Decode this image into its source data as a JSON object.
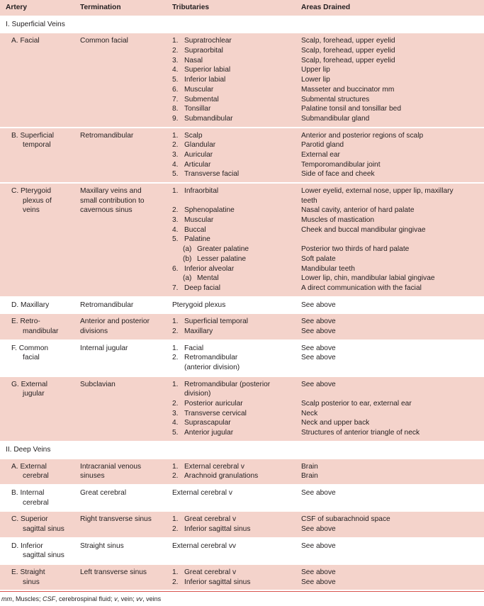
{
  "headers": [
    "Artery",
    "Termination",
    "Tributaries",
    "Areas Drained"
  ],
  "colors": {
    "row_fill": "#f4d3cb",
    "rule": "#d9534f"
  },
  "sections": [
    {
      "title": "I. Superficial Veins",
      "rows": [
        {
          "pink": true,
          "artery": [
            "A. Facial"
          ],
          "termination": [
            "Common facial"
          ],
          "tributaries": [
            {
              "num": "1.",
              "text": "Supratrochlear"
            },
            {
              "num": "2.",
              "text": "Supraorbital"
            },
            {
              "num": "3.",
              "text": "Nasal"
            },
            {
              "num": "4.",
              "text": "Superior labial"
            },
            {
              "num": "5.",
              "text": "Inferior labial"
            },
            {
              "num": "6.",
              "text": "Muscular"
            },
            {
              "num": "7.",
              "text": "Submental"
            },
            {
              "num": "8.",
              "text": "Tonsillar"
            },
            {
              "num": "9.",
              "text": "Submandibular"
            }
          ],
          "areas": [
            "Scalp, forehead, upper eyelid",
            "Scalp, forehead, upper eyelid",
            "Scalp, forehead, upper eyelid",
            "Upper lip",
            "Lower lip",
            "Masseter and buccinator mm",
            "Submental structures",
            "Palatine tonsil and tonsillar bed",
            "Submandibular gland"
          ]
        },
        {
          "pink": true,
          "artery": [
            "B. Superficial",
            "temporal"
          ],
          "termination": [
            "Retromandibular"
          ],
          "tributaries": [
            {
              "num": "1.",
              "text": "Scalp"
            },
            {
              "num": "2.",
              "text": "Glandular"
            },
            {
              "num": "3.",
              "text": "Auricular"
            },
            {
              "num": "4.",
              "text": "Articular"
            },
            {
              "num": "5.",
              "text": "Transverse facial"
            }
          ],
          "areas": [
            "Anterior and posterior regions of scalp",
            "Parotid gland",
            "External ear",
            "Temporomandibular joint",
            "Side of face and cheek"
          ]
        },
        {
          "pink": true,
          "artery": [
            "C. Pterygoid",
            "plexus of",
            "veins"
          ],
          "termination": [
            "Maxillary veins and",
            "small contribution to",
            "cavernous sinus"
          ],
          "tributaries": [
            {
              "num": "1.",
              "text": "Infraorbital"
            },
            {
              "num": "",
              "text": ""
            },
            {
              "num": "2.",
              "text": "Sphenopalatine"
            },
            {
              "num": "3.",
              "text": "Muscular"
            },
            {
              "num": "4.",
              "text": "Buccal"
            },
            {
              "num": "5.",
              "text": "Palatine"
            },
            {
              "num": "(a)",
              "text": "Greater palatine",
              "sub": true
            },
            {
              "num": "(b)",
              "text": "Lesser palatine",
              "sub": true
            },
            {
              "num": "6.",
              "text": "Inferior alveolar"
            },
            {
              "num": "(a)",
              "text": "Mental",
              "sub": true
            },
            {
              "num": "7.",
              "text": "Deep facial"
            }
          ],
          "areas": [
            "Lower eyelid, external nose, upper lip, maxillary",
            "teeth",
            "Nasal cavity, anterior of hard palate",
            "Muscles of mastication",
            "Cheek and buccal mandibular gingivae",
            "",
            "Posterior two thirds of hard palate",
            "Soft palate",
            "Mandibular teeth",
            "Lower lip, chin, mandibular labial gingivae",
            "A direct communication with the facial"
          ]
        },
        {
          "pink": false,
          "artery": [
            "D. Maxillary"
          ],
          "termination": [
            "Retromandibular"
          ],
          "tributaries": [
            {
              "num": "",
              "text": "Pterygoid plexus",
              "plain": true
            }
          ],
          "areas": [
            "See above"
          ]
        },
        {
          "pink": true,
          "artery": [
            "E. Retro-",
            "mandibular"
          ],
          "termination": [
            "Anterior and posterior",
            "divisions"
          ],
          "tributaries": [
            {
              "num": "1.",
              "text": "Superficial temporal"
            },
            {
              "num": "2.",
              "text": "Maxillary"
            }
          ],
          "areas": [
            "See above",
            "See above"
          ]
        },
        {
          "pink": false,
          "artery": [
            "F. Common",
            "facial"
          ],
          "termination": [
            "Internal jugular"
          ],
          "tributaries": [
            {
              "num": "1.",
              "text": "Facial"
            },
            {
              "num": "2.",
              "text": "Retromandibular"
            },
            {
              "num": "",
              "text": "(anterior division)",
              "cont": true
            }
          ],
          "areas": [
            "See above",
            "See above"
          ]
        },
        {
          "pink": true,
          "artery": [
            "G. External",
            "jugular"
          ],
          "termination": [
            "Subclavian"
          ],
          "tributaries": [
            {
              "num": "1.",
              "text": "Retromandibular (posterior"
            },
            {
              "num": "",
              "text": "division)",
              "cont": true
            },
            {
              "num": "2.",
              "text": "Posterior auricular"
            },
            {
              "num": "3.",
              "text": "Transverse cervical"
            },
            {
              "num": "4.",
              "text": "Suprascapular"
            },
            {
              "num": "5.",
              "text": "Anterior jugular"
            }
          ],
          "areas": [
            "See above",
            "",
            "Scalp posterior to ear, external ear",
            "Neck",
            "Neck and upper back",
            "Structures of anterior triangle of neck"
          ]
        }
      ]
    },
    {
      "title": "II. Deep Veins",
      "rows": [
        {
          "pink": true,
          "artery": [
            "A. External",
            "cerebral"
          ],
          "termination": [
            "Intracranial venous",
            "sinuses"
          ],
          "tributaries": [
            {
              "num": "1.",
              "text": "External cerebral v"
            },
            {
              "num": "2.",
              "text": "Arachnoid granulations"
            }
          ],
          "areas": [
            "Brain",
            "Brain"
          ]
        },
        {
          "pink": false,
          "artery": [
            "B. Internal",
            "cerebral"
          ],
          "termination": [
            "Great cerebral"
          ],
          "tributaries": [
            {
              "num": "",
              "text": "External cerebral v",
              "plain": true
            }
          ],
          "areas": [
            "See above"
          ]
        },
        {
          "pink": true,
          "artery": [
            "C. Superior",
            "sagittal sinus"
          ],
          "termination": [
            "Right transverse sinus"
          ],
          "tributaries": [
            {
              "num": "1.",
              "text": "Great cerebral v"
            },
            {
              "num": "2.",
              "text": "Inferior sagittal sinus"
            }
          ],
          "areas": [
            "CSF of subarachnoid space",
            "See above"
          ]
        },
        {
          "pink": false,
          "artery": [
            "D. Inferior",
            "sagittal sinus"
          ],
          "termination": [
            "Straight sinus"
          ],
          "tributaries": [
            {
              "num": "",
              "text": "External cerebral vv",
              "plain": true
            }
          ],
          "areas": [
            "See above"
          ]
        },
        {
          "pink": true,
          "artery": [
            "E. Straight",
            "sinus"
          ],
          "termination": [
            "Left transverse sinus"
          ],
          "tributaries": [
            {
              "num": "1.",
              "text": "Great cerebral v"
            },
            {
              "num": "2.",
              "text": "Inferior sagittal sinus"
            }
          ],
          "areas": [
            "See above",
            "See above"
          ]
        }
      ]
    }
  ],
  "footnote": [
    {
      "abbr": "mm",
      "def": ", Muscles; "
    },
    {
      "abbr": "CSF",
      "def": ", cerebrospinal fluid; "
    },
    {
      "abbr": "v",
      "def": ", vein; "
    },
    {
      "abbr": "vv",
      "def": ", veins"
    }
  ]
}
